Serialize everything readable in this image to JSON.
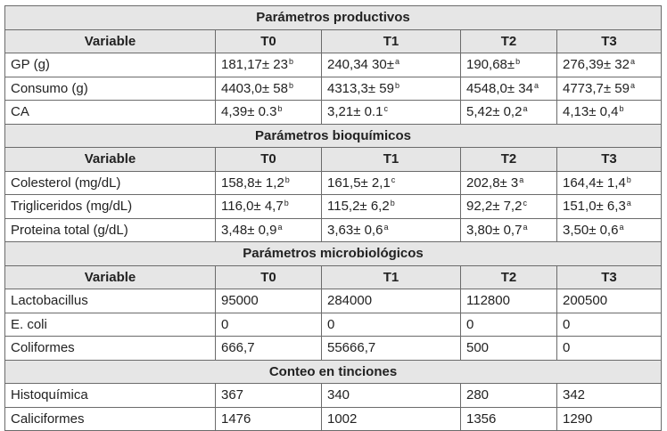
{
  "sections": [
    {
      "title": "Parámetros productivos",
      "columns": [
        "Variable",
        "T0",
        "T1",
        "T2",
        "T3"
      ],
      "rows": [
        {
          "label": "GP (g)",
          "cells": [
            {
              "v": "181,17± 23",
              "s": "b"
            },
            {
              "v": "240,34 30±",
              "s": "a"
            },
            {
              "v": "190,68±",
              "s": "b"
            },
            {
              "v": "276,39± 32",
              "s": "a"
            }
          ]
        },
        {
          "label": "Consumo (g)",
          "cells": [
            {
              "v": "4403,0± 58",
              "s": "b"
            },
            {
              "v": "4313,3± 59",
              "s": "b"
            },
            {
              "v": "4548,0± 34",
              "s": "a"
            },
            {
              "v": "4773,7± 59",
              "s": "a"
            }
          ]
        },
        {
          "label": "CA",
          "cells": [
            {
              "v": "4,39± 0.3",
              "s": "b"
            },
            {
              "v": "3,21± 0.1",
              "s": "c"
            },
            {
              "v": "5,42± 0,2",
              "s": "a"
            },
            {
              "v": "4,13± 0,4",
              "s": "b"
            }
          ]
        }
      ]
    },
    {
      "title": "Parámetros bioquímicos",
      "columns": [
        "Variable",
        "T0",
        "T1",
        "T2",
        "T3"
      ],
      "rows": [
        {
          "label": "Colesterol (mg/dL)",
          "cells": [
            {
              "v": "158,8± 1,2",
              "s": "b"
            },
            {
              "v": "161,5± 2,1",
              "s": "c"
            },
            {
              "v": "202,8± 3",
              "s": "a"
            },
            {
              "v": "164,4± 1,4",
              "s": "b"
            }
          ]
        },
        {
          "label": "Trigliceridos (mg/dL)",
          "cells": [
            {
              "v": "116,0± 4,7",
              "s": "b"
            },
            {
              "v": "115,2± 6,2",
              "s": "b"
            },
            {
              "v": "92,2± 7,2",
              "s": "c"
            },
            {
              "v": "151,0± 6,3",
              "s": "a"
            }
          ]
        },
        {
          "label": "Proteina total (g/dL)",
          "cells": [
            {
              "v": "3,48± 0,9",
              "s": "a"
            },
            {
              "v": "3,63± 0,6",
              "s": "a"
            },
            {
              "v": "3,80± 0,7",
              "s": "a"
            },
            {
              "v": "3,50± 0,6",
              "s": "a"
            }
          ]
        }
      ]
    },
    {
      "title": "Parámetros microbiológicos",
      "columns": [
        "Variable",
        "T0",
        "T1",
        "T2",
        "T3"
      ],
      "rows": [
        {
          "label": "Lactobacillus",
          "cells": [
            {
              "v": "95000",
              "s": ""
            },
            {
              "v": "284000",
              "s": ""
            },
            {
              "v": "112800",
              "s": ""
            },
            {
              "v": "200500",
              "s": ""
            }
          ]
        },
        {
          "label": "E. coli",
          "cells": [
            {
              "v": "0",
              "s": ""
            },
            {
              "v": "0",
              "s": ""
            },
            {
              "v": "0",
              "s": ""
            },
            {
              "v": "0",
              "s": ""
            }
          ]
        },
        {
          "label": "Coliformes",
          "cells": [
            {
              "v": "666,7",
              "s": ""
            },
            {
              "v": "55666,7",
              "s": ""
            },
            {
              "v": "500",
              "s": ""
            },
            {
              "v": "0",
              "s": ""
            }
          ]
        }
      ]
    },
    {
      "title": "Conteo en tinciones",
      "columns": [],
      "rows": [
        {
          "label": "Histoquímica",
          "cells": [
            {
              "v": "367",
              "s": ""
            },
            {
              "v": "340",
              "s": ""
            },
            {
              "v": "280",
              "s": ""
            },
            {
              "v": "342",
              "s": ""
            }
          ]
        },
        {
          "label": "Caliciformes",
          "cells": [
            {
              "v": "1476",
              "s": ""
            },
            {
              "v": "1002",
              "s": ""
            },
            {
              "v": "1356",
              "s": ""
            },
            {
              "v": "1290",
              "s": ""
            }
          ]
        }
      ]
    }
  ]
}
